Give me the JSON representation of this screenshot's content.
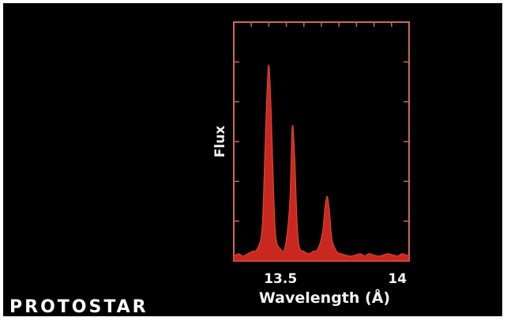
{
  "caption": "PROTOSTAR",
  "colors": {
    "background": "#000000",
    "frame": "#cc6a55",
    "fill": "#c8281f",
    "stroke": "#e04535",
    "text": "#f2f2f2"
  },
  "chart_data": {
    "type": "area",
    "title": "",
    "xlabel": "Wavelength (Å)",
    "ylabel": "Flux",
    "xlim": [
      13.3,
      14.05
    ],
    "ylim": [
      0,
      1.0
    ],
    "grid": false,
    "x_tick_labels": [
      "13.5",
      "14"
    ],
    "x_ticks": [
      13.5,
      14.0
    ],
    "peaks": [
      {
        "x": 13.45,
        "y": 0.82
      },
      {
        "x": 13.55,
        "y": 0.56
      },
      {
        "x": 13.7,
        "y": 0.27
      }
    ],
    "x": [
      13.3,
      13.32,
      13.34,
      13.36,
      13.38,
      13.4,
      13.42,
      13.43,
      13.44,
      13.45,
      13.46,
      13.47,
      13.48,
      13.5,
      13.52,
      13.54,
      13.55,
      13.56,
      13.57,
      13.58,
      13.6,
      13.62,
      13.64,
      13.66,
      13.68,
      13.69,
      13.7,
      13.71,
      13.72,
      13.74,
      13.76,
      13.8,
      13.84,
      13.86,
      13.88,
      13.92,
      13.96,
      14.0,
      14.02,
      14.05
    ],
    "y": [
      0.02,
      0.03,
      0.02,
      0.03,
      0.04,
      0.05,
      0.12,
      0.35,
      0.65,
      0.82,
      0.62,
      0.3,
      0.1,
      0.05,
      0.06,
      0.25,
      0.56,
      0.45,
      0.18,
      0.06,
      0.04,
      0.03,
      0.04,
      0.05,
      0.12,
      0.22,
      0.27,
      0.2,
      0.09,
      0.04,
      0.03,
      0.02,
      0.03,
      0.02,
      0.03,
      0.02,
      0.03,
      0.02,
      0.03,
      0.02
    ]
  }
}
